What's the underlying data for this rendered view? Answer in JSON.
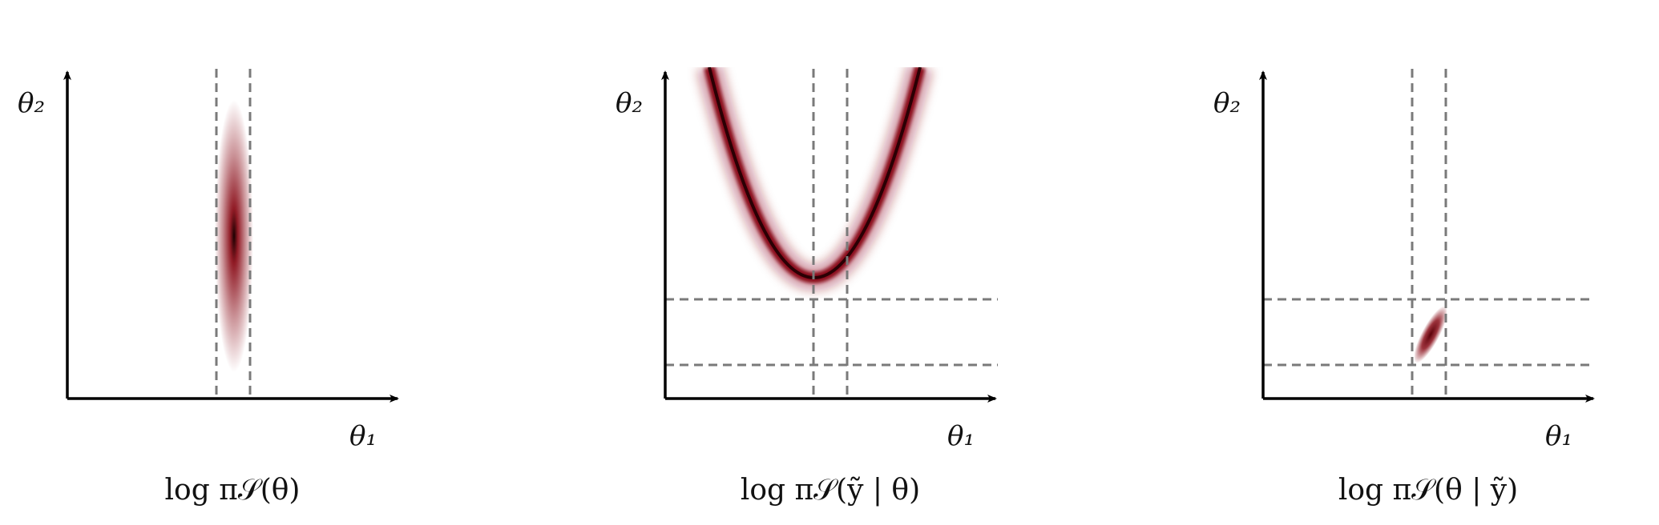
{
  "panels": [
    {
      "id": "prior",
      "caption": "log π𝒮(θ)",
      "x_axis_label": "θ₁",
      "y_axis_label": "θ₂",
      "density": "vertical-ellipse",
      "vertical_dashed_lines": 2,
      "horizontal_dashed_lines": 0
    },
    {
      "id": "likelihood",
      "caption": "log π𝒮(ỹ | θ)",
      "x_axis_label": "θ₁",
      "y_axis_label": "θ₂",
      "density": "parabola-ridge",
      "vertical_dashed_lines": 2,
      "horizontal_dashed_lines": 2
    },
    {
      "id": "posterior",
      "caption": "log π𝒮(θ | ỹ)",
      "x_axis_label": "θ₁",
      "y_axis_label": "θ₂",
      "density": "small-blob",
      "vertical_dashed_lines": 2,
      "horizontal_dashed_lines": 2
    }
  ],
  "colors": {
    "density": "#8b0f1a",
    "density_core": "#1a0000",
    "axis": "#000000",
    "dashed": "#7a7a7a"
  }
}
